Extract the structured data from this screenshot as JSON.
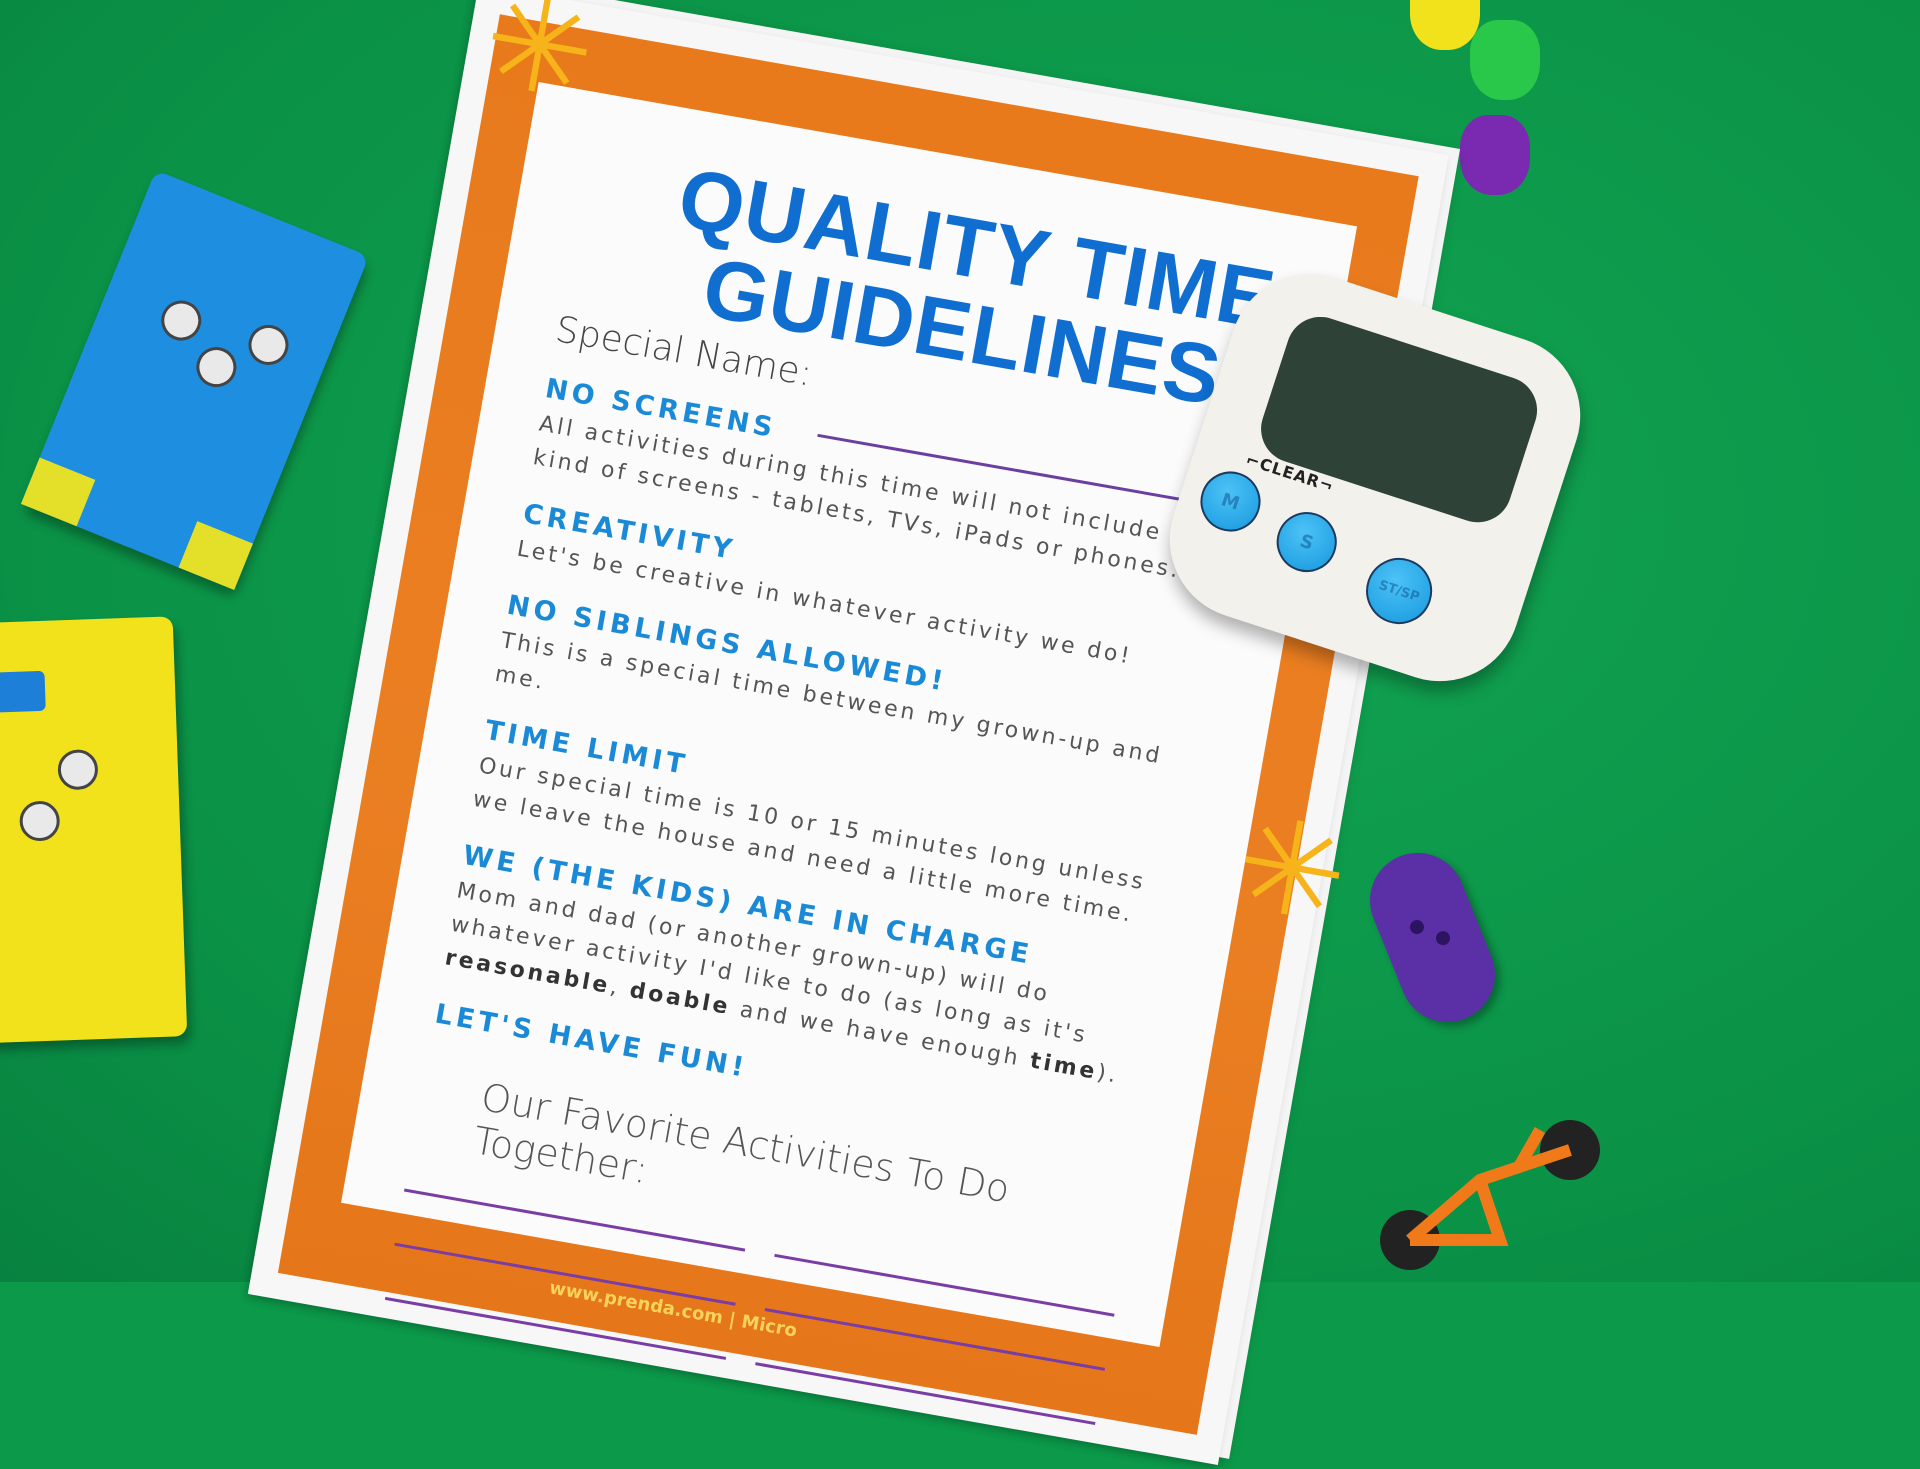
{
  "worksheet": {
    "title_line1": "QUALITY TIME",
    "title_line2": "GUIDELINES",
    "special_name_label": "Special Name:",
    "sections": [
      {
        "heading": "NO SCREENS",
        "body": "All activities during this time will not include any kind of screens - tablets, TVs, iPads or phones."
      },
      {
        "heading": "CREATIVITY",
        "body": "Let's be creative in whatever activity we do!"
      },
      {
        "heading": "NO SIBLINGS ALLOWED!",
        "body": "This is a special time between my grown-up and me."
      },
      {
        "heading": "TIME LIMIT",
        "body": "Our special time is 10 or 15 minutes long unless we leave the house and need a little more time."
      },
      {
        "heading": "WE (THE KIDS) ARE IN CHARGE",
        "body_start": "Mom and dad (or another grown-up) will do whatever activity I'd like to do (as long as it's ",
        "bold1": "reasonable",
        "sep1": ", ",
        "bold2": "doable",
        "mid": " and we have enough ",
        "bold3": "time",
        "end": ")."
      },
      {
        "heading": "LET'S HAVE FUN!"
      }
    ],
    "favorites_label": "Our Favorite Activities To Do Together:",
    "footer": "www.prenda.com | Micro"
  },
  "timer": {
    "clear_label": "CLEAR",
    "buttons": [
      "M",
      "S",
      "ST/SP"
    ]
  },
  "colors": {
    "background": "#0c9a4a",
    "frame": "#e87a1c",
    "title": "#0f6ed0",
    "heading": "#1b8ad6",
    "line": "#6a3fa0"
  }
}
